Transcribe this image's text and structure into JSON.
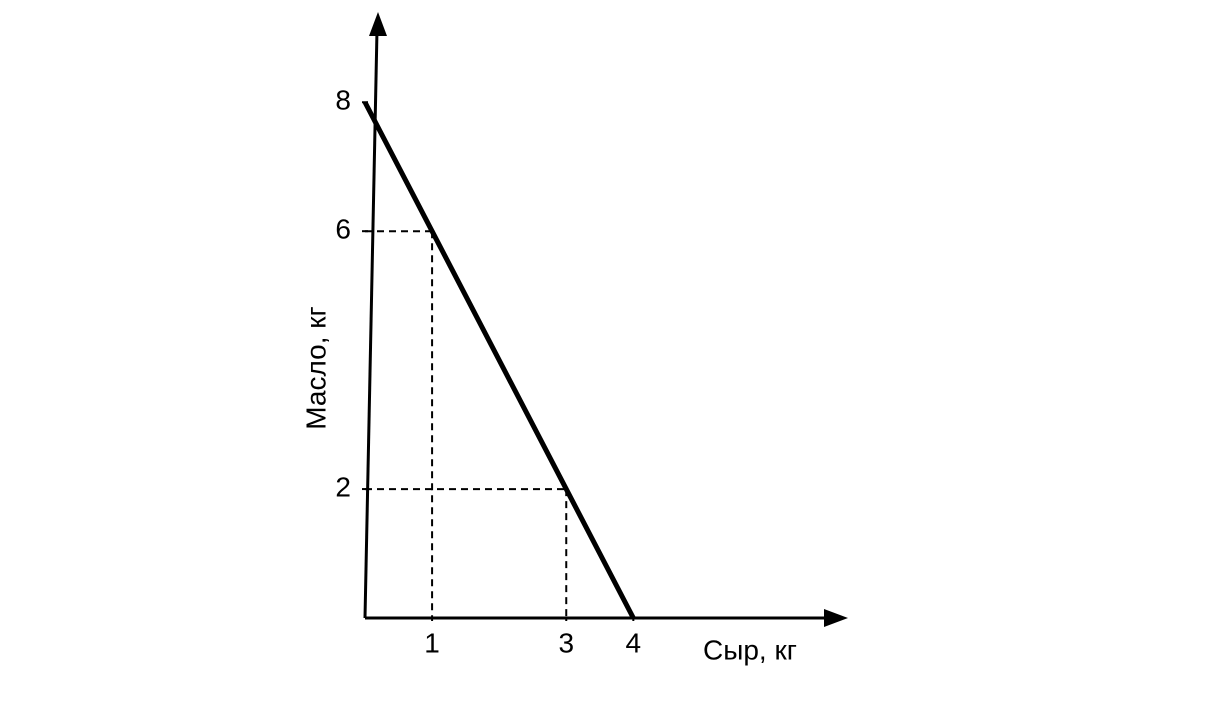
{
  "chart_data": {
    "type": "line",
    "x_label": "Сыр, кг",
    "y_label": "Масло, кг",
    "x": [
      0,
      1,
      3,
      4
    ],
    "values": [
      8,
      6,
      2,
      0
    ],
    "color": "#000000",
    "xlim": [
      0,
      7.2
    ],
    "ylim": [
      0,
      9.4
    ],
    "xticks": [
      1,
      3,
      4
    ],
    "yticks": [
      2,
      6,
      8
    ],
    "grid": false
  }
}
